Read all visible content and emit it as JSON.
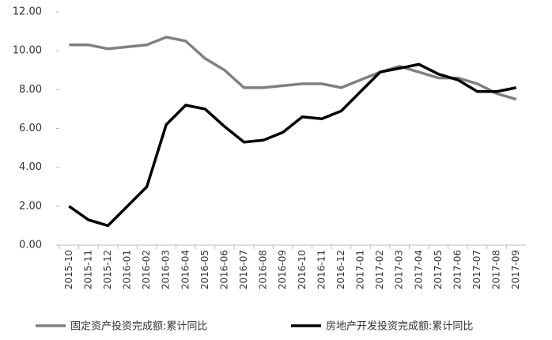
{
  "chart_data": {
    "type": "line",
    "categories": [
      "2015-10",
      "2015-11",
      "2015-12",
      "2016-01",
      "2016-02",
      "2016-03",
      "2016-04",
      "2016-05",
      "2016-06",
      "2016-07",
      "2016-08",
      "2016-09",
      "2016-10",
      "2016-11",
      "2016-12",
      "2017-01",
      "2017-02",
      "2017-03",
      "2017-04",
      "2017-05",
      "2017-06",
      "2017-07",
      "2017-08",
      "2017-09"
    ],
    "series": [
      {
        "name": "固定资产投资完成额:累计同比",
        "color": "#808080",
        "values": [
          10.3,
          10.3,
          10.1,
          10.2,
          10.3,
          10.7,
          10.5,
          9.6,
          9.0,
          8.1,
          8.1,
          8.2,
          8.3,
          8.3,
          8.1,
          8.5,
          8.9,
          9.2,
          8.9,
          8.6,
          8.6,
          8.3,
          7.8,
          7.5
        ]
      },
      {
        "name": "房地产开发投资完成额:累计同比",
        "color": "#000000",
        "values": [
          2.0,
          1.3,
          1.0,
          2.0,
          3.0,
          6.2,
          7.2,
          7.0,
          6.1,
          5.3,
          5.4,
          5.8,
          6.6,
          6.5,
          6.9,
          7.9,
          8.9,
          9.1,
          9.3,
          8.8,
          8.5,
          7.9,
          7.9,
          8.1
        ]
      }
    ],
    "ylim": [
      0,
      12
    ],
    "yticks": [
      {
        "value": 0,
        "label": "0.00"
      },
      {
        "value": 2,
        "label": "2.00"
      },
      {
        "value": 4,
        "label": "4.00"
      },
      {
        "value": 6,
        "label": "6.00"
      },
      {
        "value": 8,
        "label": "8.00"
      },
      {
        "value": 10,
        "label": "10.00"
      },
      {
        "value": 12,
        "label": "12.00"
      }
    ],
    "legend": "bottom"
  }
}
